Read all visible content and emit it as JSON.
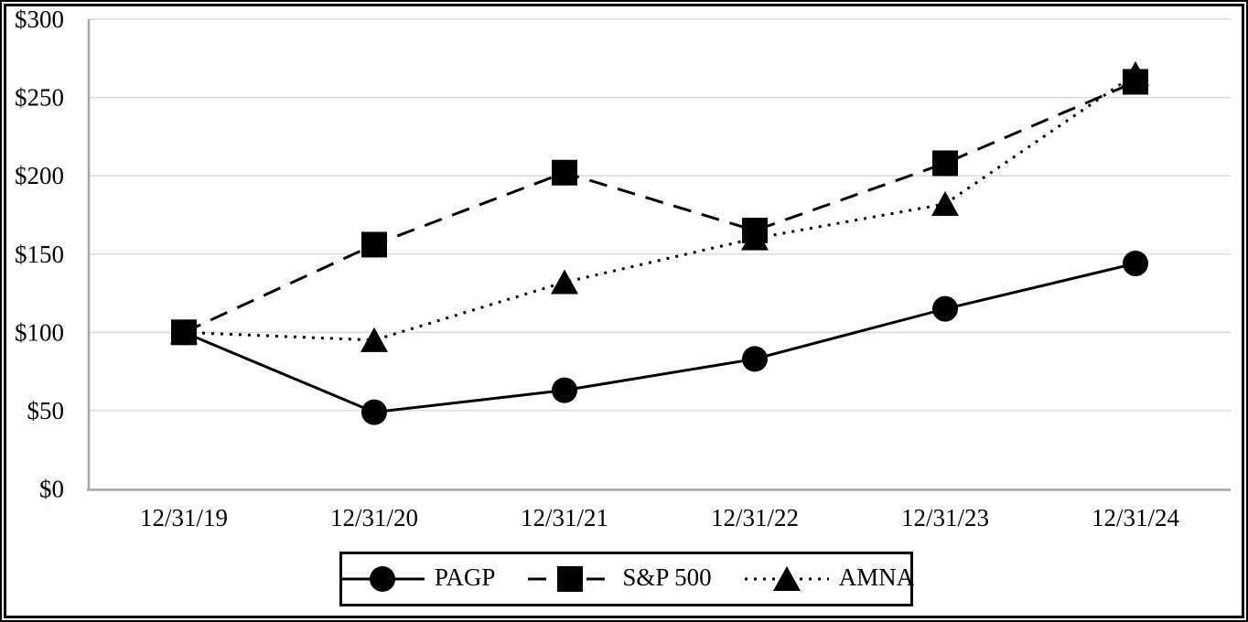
{
  "chart_data": {
    "type": "line",
    "title": "",
    "xlabel": "",
    "ylabel": "",
    "categories": [
      "12/31/19",
      "12/31/20",
      "12/31/21",
      "12/31/22",
      "12/31/23",
      "12/31/24"
    ],
    "series": [
      {
        "name": "PAGP",
        "marker": "circle",
        "line_style": "solid",
        "values": [
          100,
          49,
          63,
          83,
          115,
          144
        ]
      },
      {
        "name": "S&P 500",
        "marker": "square",
        "line_style": "dashed",
        "values": [
          100,
          156,
          202,
          165,
          208,
          260
        ]
      },
      {
        "name": "AMNA",
        "marker": "triangle",
        "line_style": "dotted",
        "values": [
          100,
          95,
          132,
          160,
          182,
          265
        ]
      }
    ],
    "draw_order": [
      0,
      2,
      1
    ],
    "y_ticks": [
      "$0",
      "$50",
      "$100",
      "$150",
      "$200",
      "$250",
      "$300"
    ],
    "y_tick_values": [
      0,
      50,
      100,
      150,
      200,
      250,
      300
    ],
    "ylim": [
      0,
      300
    ],
    "grid": true,
    "legend_position": "bottom",
    "colors": {
      "series": "#000000",
      "gridline": "#dcdcdc",
      "axis": "#a6a6a6",
      "text": "#000000",
      "background": "#ffffff",
      "frame": "#000000"
    }
  }
}
